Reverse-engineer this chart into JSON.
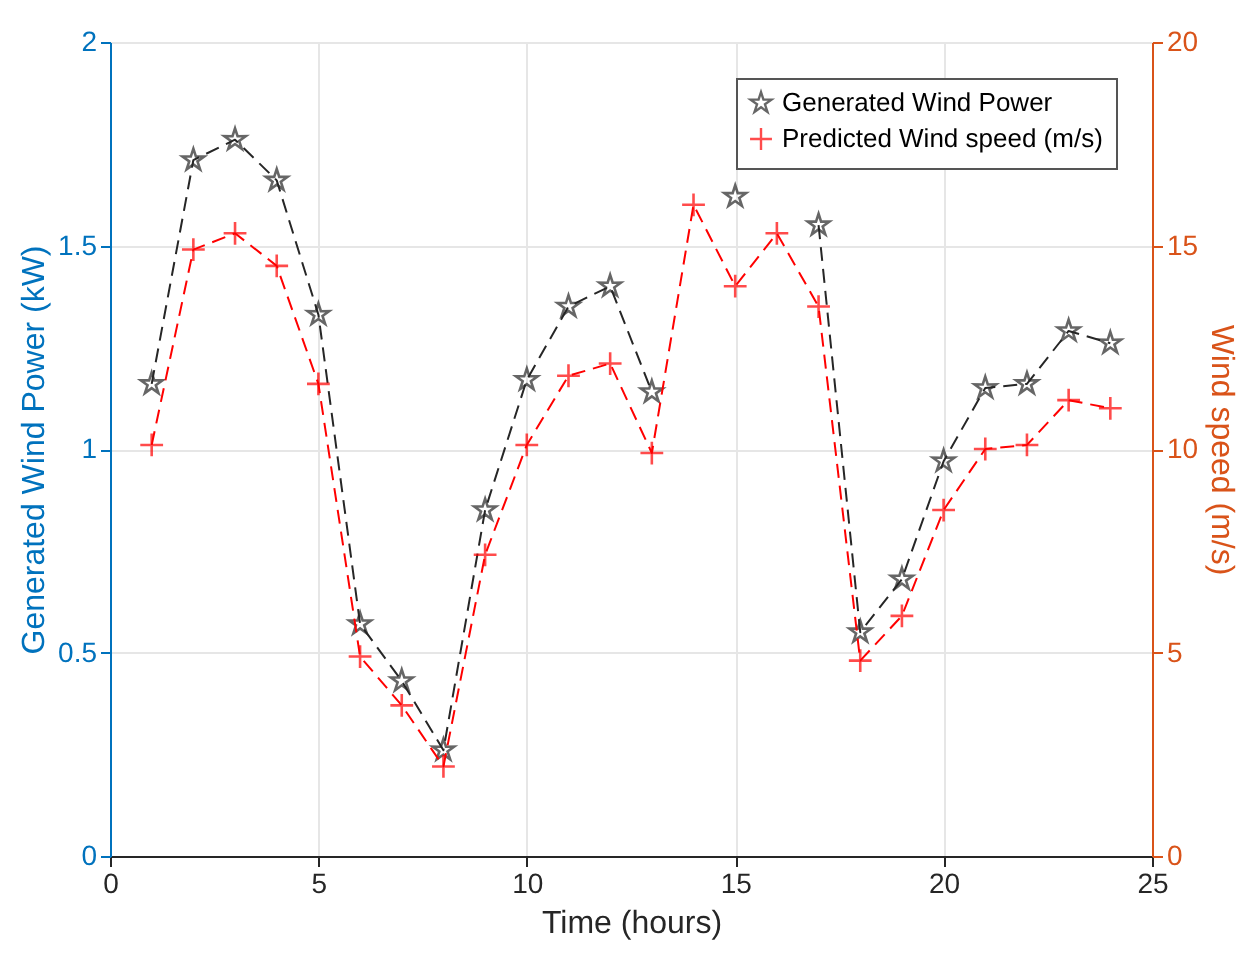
{
  "chart_data": {
    "type": "line",
    "x": [
      1,
      2,
      3,
      4,
      5,
      6,
      7,
      8,
      9,
      10,
      11,
      12,
      13,
      14,
      15,
      16,
      17,
      18,
      19,
      20,
      21,
      22,
      23,
      24
    ],
    "series": [
      {
        "name": "Generated Wind Power",
        "color": "#262626",
        "marker": "star",
        "values": [
          1.16,
          1.71,
          1.76,
          1.66,
          1.33,
          0.57,
          0.43,
          0.26,
          0.85,
          1.17,
          1.35,
          1.4,
          1.14,
          null,
          1.62,
          null,
          1.55,
          0.55,
          0.68,
          0.97,
          1.15,
          1.16,
          1.29,
          1.26
        ]
      },
      {
        "name": "Predicted Wind speed (m/s)",
        "color": "#ff0000",
        "marker": "cross",
        "axis": "y2",
        "values": [
          10.1,
          14.9,
          15.3,
          14.5,
          11.6,
          4.9,
          3.7,
          2.2,
          7.4,
          10.1,
          11.8,
          12.1,
          9.9,
          16.0,
          14.0,
          15.3,
          13.5,
          4.8,
          5.9,
          8.5,
          10.0,
          10.1,
          11.2,
          11.0
        ]
      }
    ],
    "xlabel": "Time (hours)",
    "ylabel": "Generated Wind Power (kW)",
    "y2label": "Wind speed (m/s)",
    "xlim": [
      0,
      25
    ],
    "xticks": [
      0,
      5,
      10,
      15,
      20,
      25
    ],
    "ylim": [
      0,
      2
    ],
    "yticks": [
      0,
      0.5,
      1,
      1.5,
      2
    ],
    "y2lim": [
      0,
      20
    ],
    "y2ticks": [
      0,
      5,
      10,
      15,
      20
    ],
    "grid": true,
    "legend": "top right",
    "line_style": "dashed"
  }
}
